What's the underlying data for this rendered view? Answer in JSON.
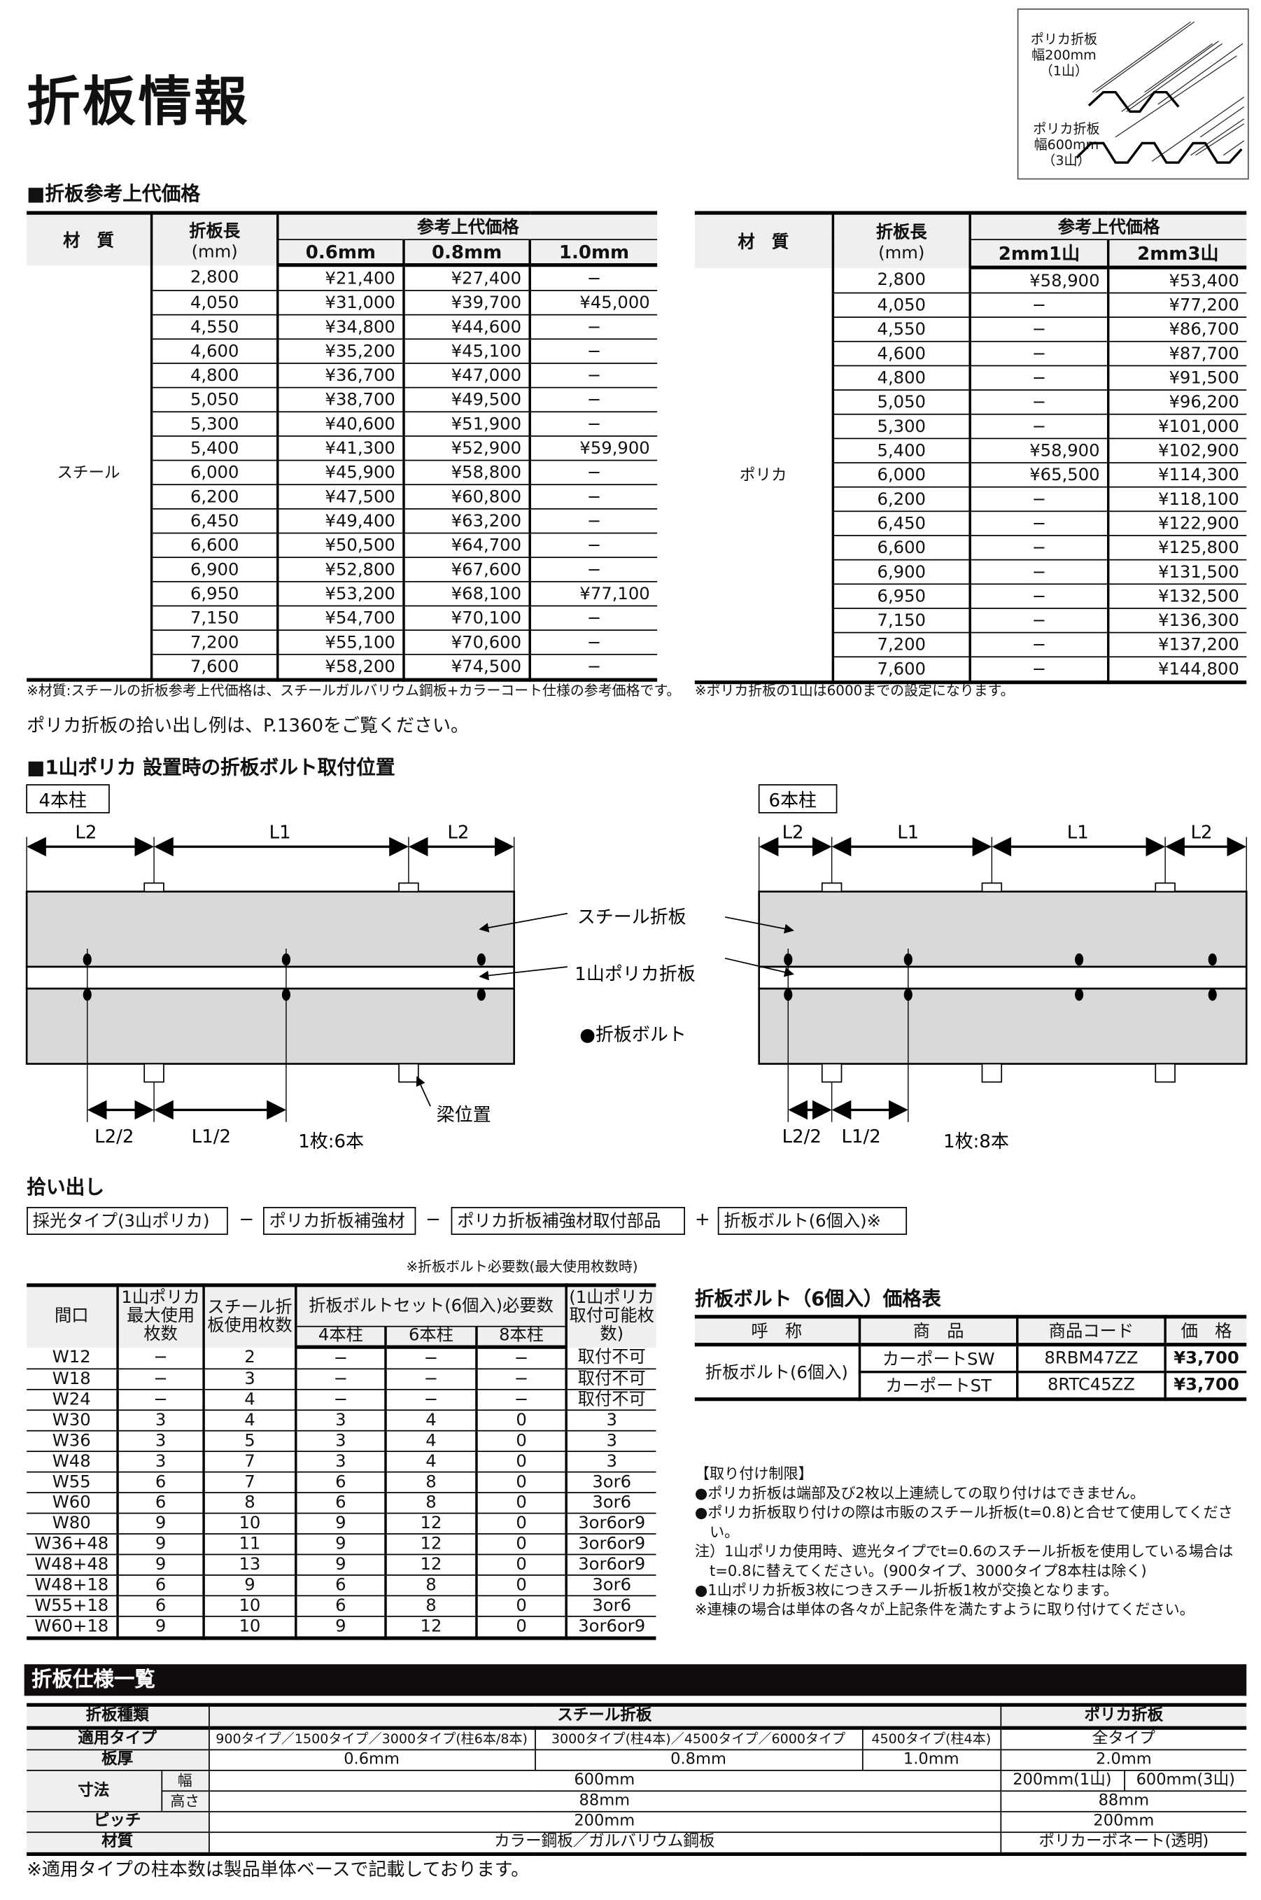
{
  "page_title": "折板情報",
  "figure": {
    "label1": [
      "ポリカ折板",
      "幅200mm",
      "（1山）"
    ],
    "label2": [
      "ポリカ折板",
      "幅600mm",
      "（3山）"
    ]
  },
  "price_section": {
    "heading": "■折板参考上代価格",
    "steel_table": {
      "headers": {
        "material": "材　質",
        "length": "折板長",
        "length_unit": "(mm)",
        "price": "参考上代価格",
        "cols": [
          "0.6mm",
          "0.8mm",
          "1.0mm"
        ]
      },
      "material": "スチール",
      "rows": [
        [
          "2,800",
          "¥21,400",
          "¥27,400",
          "−"
        ],
        [
          "4,050",
          "¥31,000",
          "¥39,700",
          "¥45,000"
        ],
        [
          "4,550",
          "¥34,800",
          "¥44,600",
          "−"
        ],
        [
          "4,600",
          "¥35,200",
          "¥45,100",
          "−"
        ],
        [
          "4,800",
          "¥36,700",
          "¥47,000",
          "−"
        ],
        [
          "5,050",
          "¥38,700",
          "¥49,500",
          "−"
        ],
        [
          "5,300",
          "¥40,600",
          "¥51,900",
          "−"
        ],
        [
          "5,400",
          "¥41,300",
          "¥52,900",
          "¥59,900"
        ],
        [
          "6,000",
          "¥45,900",
          "¥58,800",
          "−"
        ],
        [
          "6,200",
          "¥47,500",
          "¥60,800",
          "−"
        ],
        [
          "6,450",
          "¥49,400",
          "¥63,200",
          "−"
        ],
        [
          "6,600",
          "¥50,500",
          "¥64,700",
          "−"
        ],
        [
          "6,900",
          "¥52,800",
          "¥67,600",
          "−"
        ],
        [
          "6,950",
          "¥53,200",
          "¥68,100",
          "¥77,100"
        ],
        [
          "7,150",
          "¥54,700",
          "¥70,100",
          "−"
        ],
        [
          "7,200",
          "¥55,100",
          "¥70,600",
          "−"
        ],
        [
          "7,600",
          "¥58,200",
          "¥74,500",
          "−"
        ]
      ],
      "note": "※材質:スチールの折板参考上代価格は、スチールガルバリウム鋼板+カラーコート仕様の参考価格です。"
    },
    "polyca_table": {
      "headers": {
        "material": "材　質",
        "length": "折板長",
        "length_unit": "(mm)",
        "price": "参考上代価格",
        "cols": [
          "2mm1山",
          "2mm3山"
        ]
      },
      "material": "ポリカ",
      "rows": [
        [
          "2,800",
          "¥58,900",
          "¥53,400"
        ],
        [
          "4,050",
          "−",
          "¥77,200"
        ],
        [
          "4,550",
          "−",
          "¥86,700"
        ],
        [
          "4,600",
          "−",
          "¥87,700"
        ],
        [
          "4,800",
          "−",
          "¥91,500"
        ],
        [
          "5,050",
          "−",
          "¥96,200"
        ],
        [
          "5,300",
          "−",
          "¥101,000"
        ],
        [
          "5,400",
          "¥58,900",
          "¥102,900"
        ],
        [
          "6,000",
          "¥65,500",
          "¥114,300"
        ],
        [
          "6,200",
          "−",
          "¥118,100"
        ],
        [
          "6,450",
          "−",
          "¥122,900"
        ],
        [
          "6,600",
          "−",
          "¥125,800"
        ],
        [
          "6,900",
          "−",
          "¥131,500"
        ],
        [
          "6,950",
          "−",
          "¥132,500"
        ],
        [
          "7,150",
          "−",
          "¥136,300"
        ],
        [
          "7,200",
          "−",
          "¥137,200"
        ],
        [
          "7,600",
          "−",
          "¥144,800"
        ]
      ],
      "note": "※ポリカ折板の1山は6000までの設定になります。"
    },
    "reference": "ポリカ折板の拾い出し例は、P.1360をご覧ください。"
  },
  "bolt_position": {
    "heading": "■1山ポリカ 設置時の折板ボルト取付位置",
    "left": {
      "tag": "4本柱",
      "dims": [
        "L2",
        "L1",
        "L2"
      ],
      "half_dims": [
        "L2/2",
        "L1/2"
      ],
      "count": "1枚:6本",
      "beam_label": "梁位置"
    },
    "right": {
      "tag": "6本柱",
      "dims": [
        "L2",
        "L1",
        "L1",
        "L2"
      ],
      "half_dims": [
        "L2/2",
        "L1/2"
      ],
      "count": "1枚:8本"
    },
    "labels": {
      "steel": "スチール折板",
      "polyca": "1山ポリカ折板",
      "bolt": "●折板ボルト"
    },
    "colors": {
      "panel": "#d9d9d9"
    }
  },
  "pickup": {
    "heading": "拾い出し",
    "items": [
      "採光タイプ(3山ポリカ)",
      "ポリカ折板補強材",
      "ポリカ折板補強材取付部品",
      "折板ボルト(6個入)※"
    ],
    "operators": [
      "−",
      "−",
      "+"
    ]
  },
  "bolt_table": {
    "note": "※折板ボルト必要数(最大使用枚数時)",
    "headers": {
      "span": "間口",
      "polyca_max": "1山ポリカ最大使用枚数",
      "steel": "スチール折板使用枚数",
      "bolt_set": "折板ボルトセット(6個入)必要数",
      "cols": [
        "4本柱",
        "6本柱",
        "8本柱"
      ],
      "possible": "(1山ポリカ取付可能枚数)"
    },
    "rows": [
      [
        "W12",
        "−",
        "2",
        "−",
        "−",
        "−",
        "取付不可"
      ],
      [
        "W18",
        "−",
        "3",
        "−",
        "−",
        "−",
        "取付不可"
      ],
      [
        "W24",
        "−",
        "4",
        "−",
        "−",
        "−",
        "取付不可"
      ],
      [
        "W30",
        "3",
        "4",
        "3",
        "4",
        "0",
        "3"
      ],
      [
        "W36",
        "3",
        "5",
        "3",
        "4",
        "0",
        "3"
      ],
      [
        "W48",
        "3",
        "7",
        "3",
        "4",
        "0",
        "3"
      ],
      [
        "W55",
        "6",
        "7",
        "6",
        "8",
        "0",
        "3or6"
      ],
      [
        "W60",
        "6",
        "8",
        "6",
        "8",
        "0",
        "3or6"
      ],
      [
        "W80",
        "9",
        "10",
        "9",
        "12",
        "0",
        "3or6or9"
      ],
      [
        "W36+48",
        "9",
        "11",
        "9",
        "12",
        "0",
        "3or6or9"
      ],
      [
        "W48+48",
        "9",
        "13",
        "9",
        "12",
        "0",
        "3or6or9"
      ],
      [
        "W48+18",
        "6",
        "9",
        "6",
        "8",
        "0",
        "3or6"
      ],
      [
        "W55+18",
        "6",
        "10",
        "6",
        "8",
        "0",
        "3or6"
      ],
      [
        "W60+18",
        "9",
        "10",
        "9",
        "12",
        "0",
        "3or6or9"
      ]
    ]
  },
  "bolt_price": {
    "heading": "折板ボルト（6個入）価格表",
    "headers": [
      "呼　称",
      "商　品",
      "商品コード",
      "価　格"
    ],
    "name": "折板ボルト(6個入)",
    "rows": [
      {
        "product": "カーポートSW",
        "code": "8RBM47ZZ",
        "price": "¥3,700"
      },
      {
        "product": "カーポートST",
        "code": "8RTC45ZZ",
        "price": "¥3,700"
      }
    ]
  },
  "restrictions": {
    "heading": "【取り付け制限】",
    "lines": [
      "●ポリカ折板は端部及び2枚以上連続しての取り付けはできません。",
      "●ポリカ折板取り付けの際は市販のスチール折板(t=0.8)と合せて使用してくださ",
      "　い。",
      "注）1山ポリカ使用時、遮光タイプでt=0.6のスチール折板を使用している場合は",
      "　t=0.8に替えてください。(900タイプ、3000タイプ8本柱は除く)",
      "●1山ポリカ折板3枚につきスチール折板1枚が交換となります。",
      "※連棟の場合は単体の各々が上記条件を満たすように取り付けてください。"
    ]
  },
  "spec": {
    "heading": "折板仕様一覧",
    "labels": {
      "kind": "折板種類",
      "type": "適用タイプ",
      "thickness": "板厚",
      "size": "寸法",
      "width": "幅",
      "height": "高さ",
      "pitch": "ピッチ",
      "material": "材質"
    },
    "steel": {
      "name": "スチール折板",
      "types": [
        "900タイプ／1500タイプ／3000タイプ(柱6本/8本)",
        "3000タイプ(柱4本)／4500タイプ／6000タイプ",
        "4500タイプ(柱4本)"
      ],
      "thickness": [
        "0.6mm",
        "0.8mm",
        "1.0mm"
      ],
      "width": "600mm",
      "height": "88mm",
      "pitch": "200mm",
      "material": "カラー鋼板／ガルバリウム鋼板"
    },
    "polyca": {
      "name": "ポリカ折板",
      "type": "全タイプ",
      "thickness": "2.0mm",
      "width": [
        "200mm(1山)",
        "600mm(3山)"
      ],
      "height": "88mm",
      "pitch": "200mm",
      "material": "ポリカーボネート(透明)"
    },
    "footnote": "※適用タイプの柱本数は製品単体ベースで記載しております。"
  }
}
